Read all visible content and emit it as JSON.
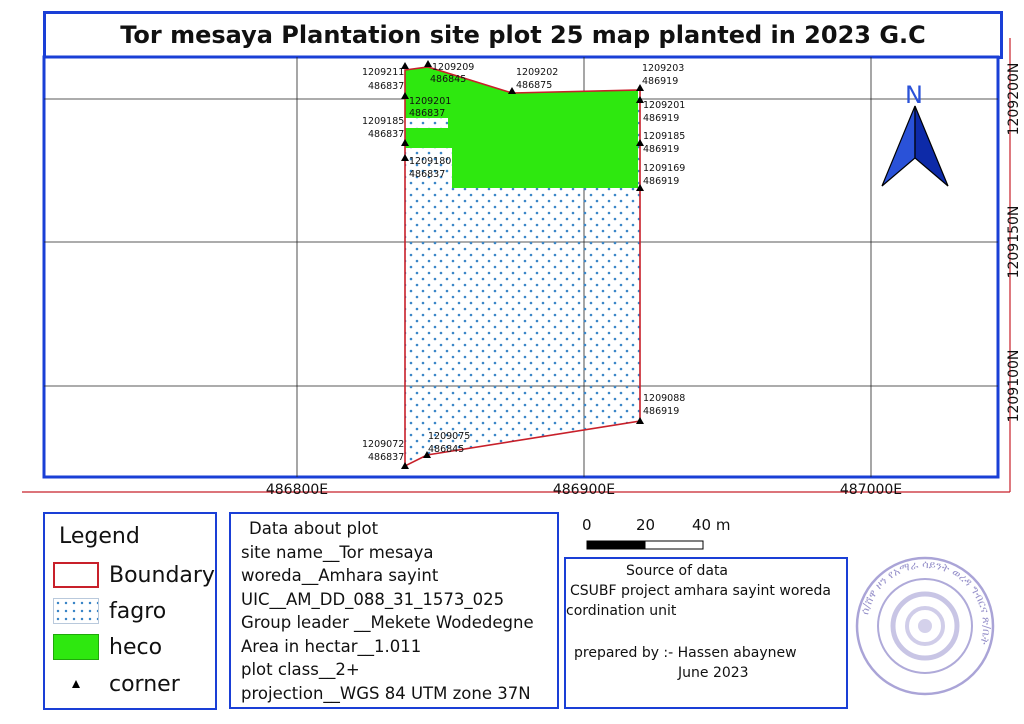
{
  "title": "Tor mesaya Plantation site plot 25 map planted in 2023 G.C",
  "map": {
    "north_arrow_label": "N",
    "x_ticks": [
      "486800E",
      "486900E",
      "487000E"
    ],
    "y_ticks": [
      "1209200N",
      "1209150N",
      "1209100N"
    ],
    "corners": [
      {
        "n": "1209211",
        "e": "486837"
      },
      {
        "n": "1209209",
        "e": "486845"
      },
      {
        "n": "1209202",
        "e": "486875"
      },
      {
        "n": "1209203",
        "e": "486919"
      },
      {
        "n": "1209201",
        "e": "486837"
      },
      {
        "n": "1209201",
        "e": "486919"
      },
      {
        "n": "1209185",
        "e": "486837"
      },
      {
        "n": "1209185",
        "e": "486919"
      },
      {
        "n": "1209180",
        "e": "486837"
      },
      {
        "n": "1209169",
        "e": "486919"
      },
      {
        "n": "1209088",
        "e": "486919"
      },
      {
        "n": "1209075",
        "e": "486845"
      },
      {
        "n": "1209072",
        "e": "486837"
      }
    ],
    "colors": {
      "boundary": "#c8202a",
      "heco": "#2ee80f",
      "fagro_dots": "#3b86c7",
      "frame": "#1a3fd6"
    }
  },
  "legend": {
    "title": "Legend",
    "items": [
      {
        "label": "Boundary",
        "symbol": "boundary"
      },
      {
        "label": "fagro",
        "symbol": "fagro"
      },
      {
        "label": "heco",
        "symbol": "heco"
      },
      {
        "label": "corner",
        "symbol": "corner"
      }
    ]
  },
  "plot_info": {
    "header": "Data about plot",
    "lines": [
      "site name__Tor mesaya",
      "woreda__Amhara sayint",
      "UIC__AM_DD_088_31_1573_025",
      "Group leader __Mekete Wodedegne",
      "Area in hectar__1.011",
      "plot class__2+",
      "projection__WGS 84 UTM zone 37N"
    ]
  },
  "scale_bar": {
    "labels": [
      "0",
      "20",
      "40 m"
    ]
  },
  "source": {
    "header": "Source of data",
    "line1": "CSUBF project amhara sayint woreda",
    "line2": "cordination unit",
    "prepared": "prepared by :- Hassen abaynew",
    "date": "June 2023"
  },
  "stamp": {
    "text": "ሰ/ሸዋ ዞን የአማራ ሳይንት ወረዳ ግብርና ጽ/ቤት"
  }
}
